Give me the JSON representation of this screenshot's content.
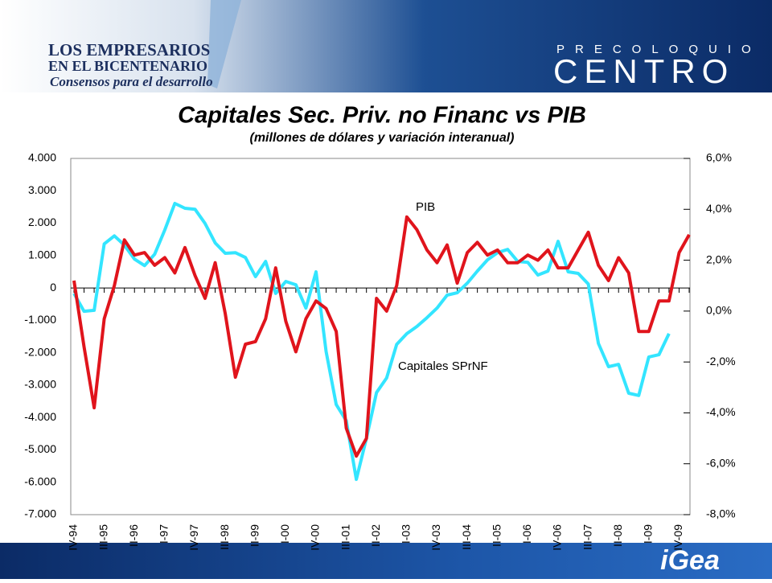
{
  "slide": {
    "brand_line1": "LOS EMPRESARIOS",
    "brand_line2": "EN EL BICENTENARIO",
    "brand_line3": "Consensos para el desarrollo",
    "event_top": "PRECOLOQUIO",
    "event_main": "CENTRO",
    "footer_logo": "iGea"
  },
  "chart_data": {
    "type": "line",
    "title": "Capitales Sec. Priv. no Financ vs PIB",
    "subtitle": "(millones de dólares y variación interanual)",
    "annotations": [
      "PIB",
      "Capitales SPrNF"
    ],
    "categories": [
      "IV-94",
      null,
      null,
      "III-95",
      null,
      null,
      "II-96",
      null,
      null,
      "I-97",
      null,
      null,
      "IV-97",
      null,
      null,
      "III-98",
      null,
      null,
      "II-99",
      null,
      null,
      "I-00",
      null,
      null,
      "IV-00",
      null,
      null,
      "III-01",
      null,
      null,
      "II-02",
      null,
      null,
      "I-03",
      null,
      null,
      "IV-03",
      null,
      null,
      "III-04",
      null,
      null,
      "II-05",
      null,
      null,
      "I-06",
      null,
      null,
      "IV-06",
      null,
      null,
      "III-07",
      null,
      null,
      "II-08",
      null,
      null,
      "I-09",
      null,
      null,
      "IV-09",
      null
    ],
    "series": [
      {
        "name": "Capitales SPrNF",
        "color": "#33e5ff",
        "axis": "y",
        "values": [
          -170,
          -720,
          -690,
          1360,
          1610,
          1320,
          890,
          690,
          1040,
          1790,
          2610,
          2460,
          2430,
          1990,
          1390,
          1070,
          1090,
          940,
          350,
          820,
          -170,
          200,
          100,
          -620,
          500,
          -1960,
          -3600,
          -4100,
          -5910,
          -4640,
          -3230,
          -2780,
          -1740,
          -1410,
          -1190,
          -920,
          -620,
          -220,
          -150,
          150,
          520,
          870,
          1090,
          1190,
          820,
          790,
          400,
          520,
          1440,
          500,
          450,
          120,
          -1710,
          -2430,
          -2360,
          -3250,
          -3320,
          -2130,
          -2060,
          -1410,
          null,
          null
        ]
      },
      {
        "name": "PIB",
        "color": "#e0141c",
        "axis": "y2",
        "values": [
          1.2,
          -1.4,
          -3.8,
          -0.3,
          1.0,
          2.8,
          2.2,
          2.3,
          1.8,
          2.1,
          1.5,
          2.5,
          1.4,
          0.5,
          1.9,
          -0.1,
          -2.6,
          -1.3,
          -1.2,
          -0.3,
          1.7,
          -0.4,
          -1.6,
          -0.3,
          0.4,
          0.1,
          -0.8,
          -4.6,
          -5.7,
          -5.0,
          0.5,
          0.0,
          1.0,
          3.7,
          3.2,
          2.4,
          1.9,
          2.6,
          1.1,
          2.3,
          2.7,
          2.2,
          2.4,
          1.9,
          1.9,
          2.2,
          2.0,
          2.4,
          1.7,
          1.7,
          2.4,
          3.1,
          1.8,
          1.2,
          2.1,
          1.5,
          -0.8,
          -0.8,
          0.4,
          0.4,
          2.3,
          3.0
        ]
      }
    ],
    "ylim": [
      -7000,
      4000
    ],
    "yticks": [
      {
        "value": 4000,
        "label": "4.000"
      },
      {
        "value": 3000,
        "label": "3.000"
      },
      {
        "value": 2000,
        "label": "2.000"
      },
      {
        "value": 1000,
        "label": "1.000"
      },
      0,
      {
        "value": -1000,
        "label": "-1.000"
      },
      {
        "value": -2000,
        "label": "-2.000"
      },
      {
        "value": -3000,
        "label": "-3.000"
      },
      {
        "value": -4000,
        "label": "-4.000"
      },
      {
        "value": -5000,
        "label": "-5.000"
      },
      {
        "value": -6000,
        "label": "-6.000"
      },
      {
        "value": -7000,
        "label": "-7.000"
      }
    ],
    "y2lim": [
      -8,
      6
    ],
    "y2ticks": [
      {
        "value": 6,
        "label": "6,0%"
      },
      {
        "value": 4,
        "label": "4,0%"
      },
      {
        "value": 2,
        "label": "2,0%"
      },
      {
        "value": 0,
        "label": "0,0%"
      },
      {
        "value": -2,
        "label": "-2,0%"
      },
      {
        "value": -4,
        "label": "-4,0%"
      },
      {
        "value": -6,
        "label": "-6,0%"
      },
      {
        "value": -8,
        "label": "-8,0%"
      }
    ],
    "legend": false,
    "grid": false
  }
}
